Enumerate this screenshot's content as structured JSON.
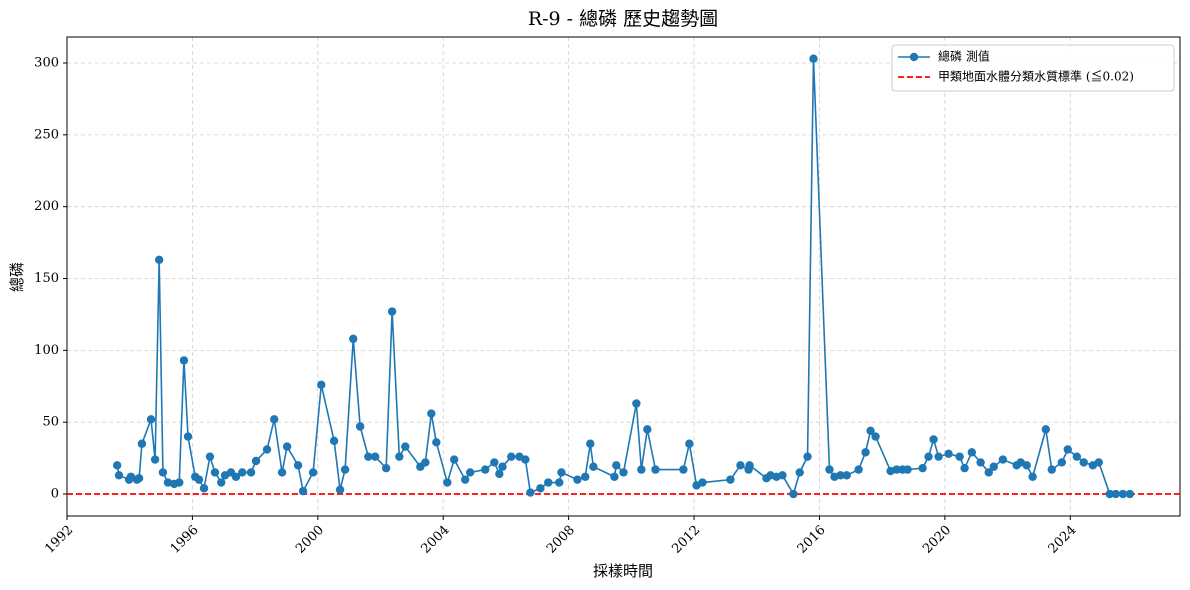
{
  "chart_data": {
    "type": "line",
    "title": "R-9 - 總磷 歷史趨勢圖",
    "x_label": "採樣時間",
    "y_label": "總磷",
    "x": [
      1993.6,
      1993.66,
      1993.98,
      1994.04,
      1994.23,
      1994.3,
      1994.39,
      1994.68,
      1994.81,
      1994.94,
      1995.06,
      1995.22,
      1995.42,
      1995.58,
      1995.73,
      1995.86,
      1996.09,
      1996.21,
      1996.37,
      1996.56,
      1996.72,
      1996.92,
      1997.04,
      1997.23,
      1997.39,
      1997.59,
      1997.87,
      1998.03,
      1998.38,
      1998.61,
      1998.86,
      1999.02,
      1999.37,
      1999.53,
      1999.85,
      2000.11,
      2000.52,
      2000.71,
      2000.87,
      2001.13,
      2001.35,
      2001.61,
      2001.83,
      2002.18,
      2002.37,
      2002.6,
      2002.79,
      2003.27,
      2003.43,
      2003.62,
      2003.78,
      2004.13,
      2004.35,
      2004.7,
      2004.86,
      2005.34,
      2005.63,
      2005.79,
      2005.89,
      2006.17,
      2006.43,
      2006.62,
      2006.78,
      2007.1,
      2007.35,
      2007.7,
      2007.77,
      2008.28,
      2008.53,
      2008.69,
      2008.79,
      2009.46,
      2009.52,
      2009.75,
      2010.16,
      2010.32,
      2010.51,
      2010.77,
      2011.66,
      2011.85,
      2012.08,
      2012.27,
      2013.16,
      2013.48,
      2013.74,
      2013.77,
      2014.31,
      2014.44,
      2014.63,
      2014.82,
      2015.17,
      2015.37,
      2015.62,
      2015.81,
      2016.32,
      2016.48,
      2016.67,
      2016.87,
      2017.25,
      2017.47,
      2017.63,
      2017.79,
      2018.27,
      2018.46,
      2018.65,
      2018.81,
      2019.29,
      2019.48,
      2019.64,
      2019.8,
      2020.12,
      2020.47,
      2020.63,
      2020.86,
      2021.14,
      2021.4,
      2021.56,
      2021.85,
      2022.29,
      2022.42,
      2022.61,
      2022.8,
      2023.22,
      2023.41,
      2023.73,
      2023.92,
      2024.21,
      2024.43,
      2024.72,
      2024.91,
      2025.26,
      2025.45,
      2025.68,
      2025.9
    ],
    "series": [
      {
        "name": "總磷 測值",
        "color": "#1f77b4",
        "values": [
          20,
          13,
          10,
          12,
          10,
          11,
          35,
          52,
          24,
          163,
          15,
          8,
          7,
          8,
          93,
          40,
          12,
          10,
          4,
          26,
          15,
          8,
          13,
          15,
          12,
          15,
          15,
          23,
          31,
          52,
          15,
          33,
          20,
          2,
          15,
          76,
          37,
          3,
          17,
          108,
          47,
          26,
          26,
          18,
          127,
          26,
          33,
          19,
          22,
          56,
          36,
          8,
          24,
          10,
          15,
          17,
          22,
          14,
          19,
          26,
          26,
          24,
          1,
          4,
          8,
          8,
          15,
          10,
          12,
          35,
          19,
          12,
          20,
          15,
          63,
          17,
          45,
          17,
          17,
          35,
          6,
          8,
          10,
          20,
          17,
          20,
          11,
          13,
          12,
          13,
          0,
          15,
          26,
          303,
          17,
          12,
          13,
          13,
          17,
          29,
          44,
          40,
          16,
          17,
          17,
          17,
          18,
          26,
          38,
          26,
          28,
          26,
          18,
          29,
          22,
          15,
          19,
          24,
          20,
          22,
          20,
          12,
          45,
          17,
          22,
          31,
          26,
          22,
          20,
          22,
          0,
          0,
          0,
          0
        ]
      }
    ],
    "reference_line": {
      "value": 0.02,
      "label": "甲類地面水體分類水質標準 (≦0.02)",
      "color": "#ff0000"
    },
    "xlim": [
      1992,
      2027.5
    ],
    "xticks": [
      1992,
      1996,
      2000,
      2004,
      2008,
      2012,
      2016,
      2020,
      2024
    ],
    "ylim": [
      -15.3,
      318.1
    ],
    "yticks": [
      0,
      50,
      100,
      150,
      200,
      250,
      300
    ],
    "grid": true,
    "legend": "upper right"
  }
}
